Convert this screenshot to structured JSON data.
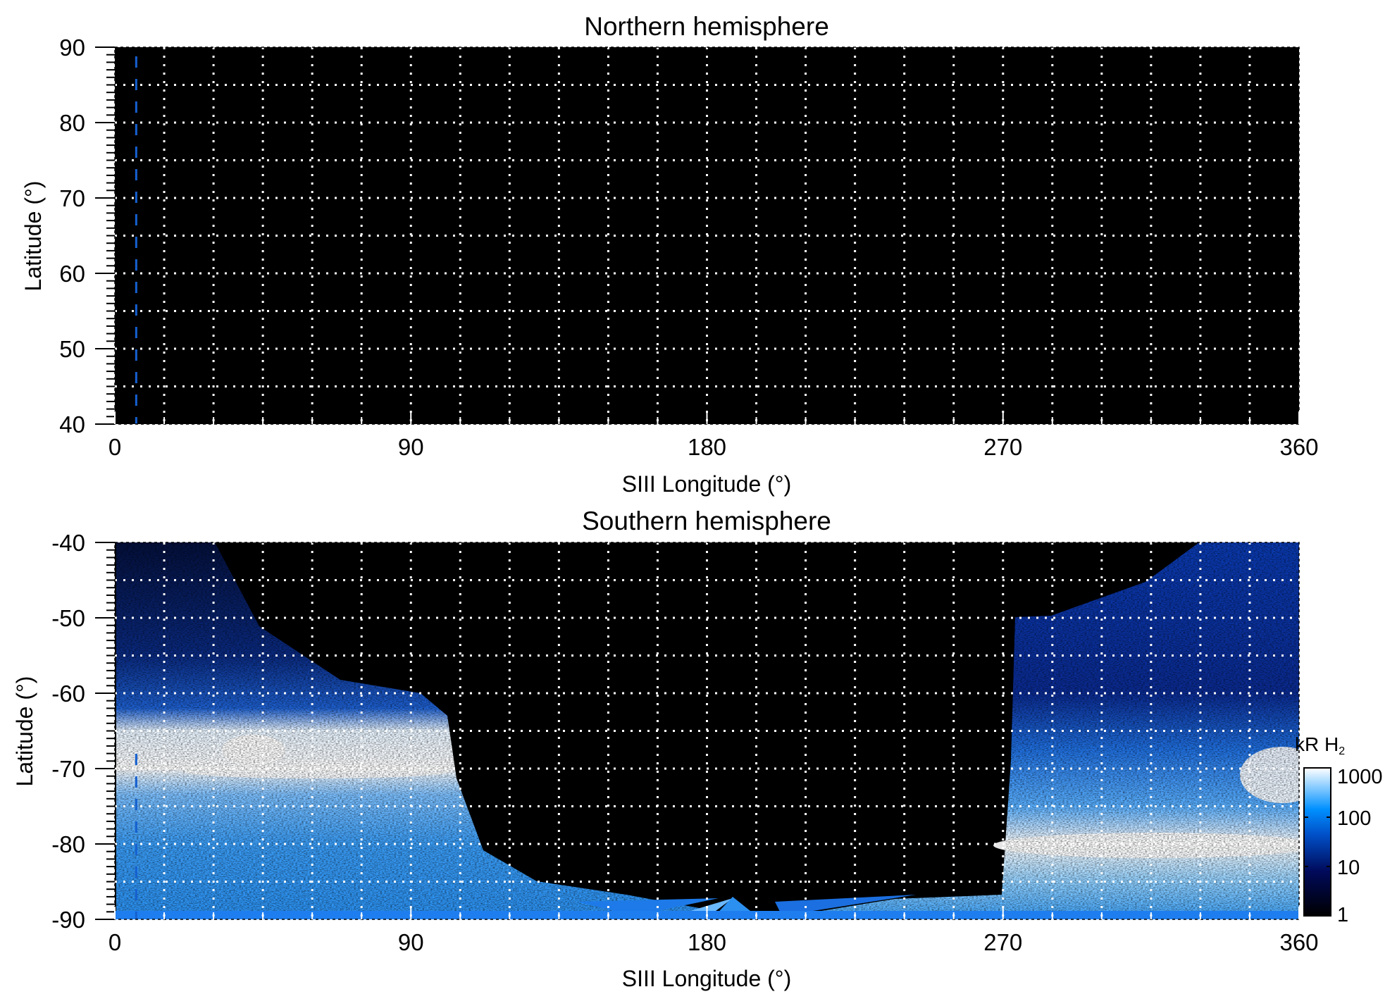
{
  "chart_data": [
    {
      "type": "heatmap",
      "title": "Northern hemisphere",
      "xlabel": "SIII Longitude (°)",
      "ylabel": "Latitude (°)",
      "xlim": [
        0,
        360
      ],
      "ylim": [
        40,
        90
      ],
      "xticks": [
        0,
        90,
        180,
        270,
        360
      ],
      "xtick_labels": [
        "0",
        "90",
        "180",
        "270",
        "360"
      ],
      "yticks": [
        90,
        80,
        70,
        60,
        50,
        40
      ],
      "ytick_labels": [
        "90",
        "80",
        "70",
        "60",
        "50",
        "40"
      ],
      "grid": {
        "on": true,
        "lon_step": 15,
        "lat_step": 5,
        "style": "dotted white"
      },
      "reference_longitude": 6.5,
      "emission": "none (all black, no data)"
    },
    {
      "type": "heatmap",
      "title": "Southern hemisphere",
      "xlabel": "SIII Longitude (°)",
      "ylabel": "Latitude (°)",
      "xlim": [
        0,
        360
      ],
      "ylim": [
        -90,
        -40
      ],
      "xticks": [
        0,
        90,
        180,
        270,
        360
      ],
      "xtick_labels": [
        "0",
        "90",
        "180",
        "270",
        "360"
      ],
      "yticks": [
        -40,
        -50,
        -60,
        -70,
        -80,
        -90
      ],
      "ytick_labels": [
        "-40",
        "-50",
        "-60",
        "-70",
        "-80",
        "-90"
      ],
      "grid": {
        "on": true,
        "lon_step": 15,
        "lat_step": 5,
        "style": "dotted white"
      },
      "reference_longitude": 6.5,
      "emission": "main oval bright near lat -68 to -72 at lon 0-100, near lat -78 to -82 at lon 280-360; no data lon ~100-270 poleward of -85"
    }
  ],
  "colorbar": {
    "label": "kR H",
    "label_sub": "2",
    "scale": "log",
    "range": [
      1,
      1000
    ],
    "ticks": [
      1,
      10,
      100,
      1000
    ],
    "tick_labels": [
      "1",
      "10",
      "100",
      "1000"
    ],
    "colors": [
      "#000000",
      "#000a5a",
      "#0050c8",
      "#0090ff",
      "#ffffff"
    ]
  }
}
